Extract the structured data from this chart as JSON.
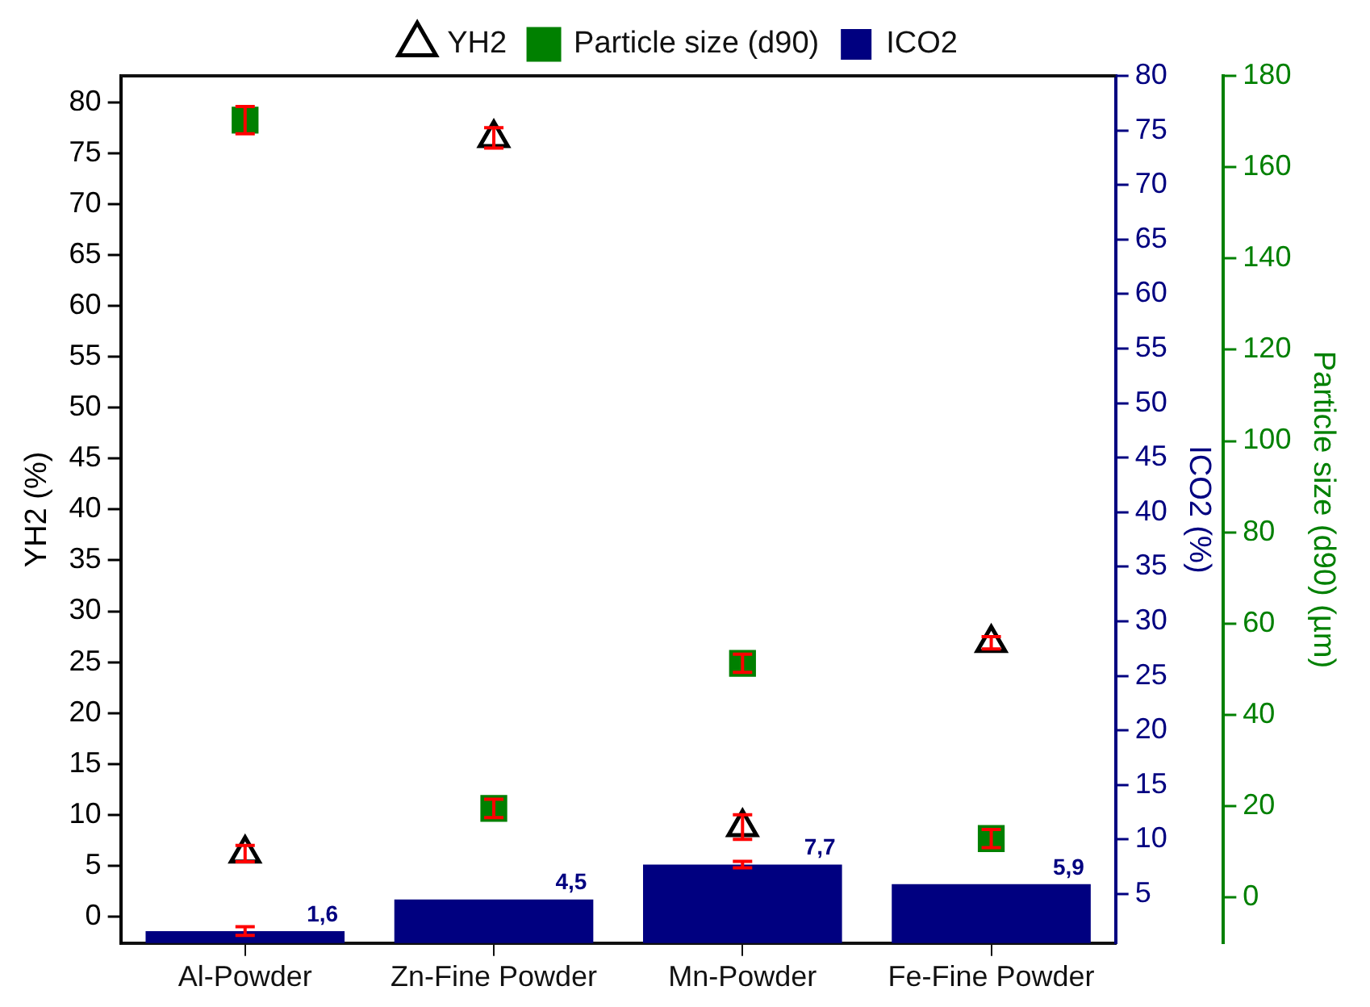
{
  "chart_data": {
    "type": "bar",
    "categories": [
      "Al-Powder",
      "Zn-Fine Powder",
      "Mn-Powder",
      "Fe-Fine Powder"
    ],
    "series": [
      {
        "name": "YH2",
        "type": "scatter",
        "marker": "triangle",
        "color": "#000000",
        "axis": "y",
        "values": [
          6.2,
          76.5,
          8.8,
          26.9
        ],
        "errors": [
          0.8,
          1,
          1.2,
          0.6
        ]
      },
      {
        "name": "Particle size (d90)",
        "type": "scatter",
        "marker": "square",
        "color": "#008000",
        "axis": "y3",
        "values": [
          170.3,
          19.5,
          51.3,
          12.9
        ],
        "errors": [
          3,
          2,
          2,
          2
        ]
      },
      {
        "name": "ICO2",
        "color": "#000080",
        "axis": "y2",
        "values": [
          1.6,
          4.5,
          7.7,
          5.9
        ],
        "value_labels": [
          "1,6",
          "4,5",
          "7,7",
          "5,9"
        ],
        "errors": [
          0.4,
          null,
          0.3,
          null
        ]
      }
    ],
    "ylabel": "YH2 (%)",
    "y2label": "ICO2 (%)",
    "y3label": "Particle size (d90) (µm)",
    "ylim": [
      -2.6,
      82.6
    ],
    "yticks": [
      0,
      5,
      10,
      15,
      20,
      25,
      30,
      35,
      40,
      45,
      50,
      55,
      60,
      65,
      70,
      75,
      80
    ],
    "y2lim": [
      0.5,
      80
    ],
    "y2ticks": [
      5,
      10,
      15,
      20,
      25,
      30,
      35,
      40,
      45,
      50,
      55,
      60,
      65,
      70,
      75,
      80
    ],
    "y3lim": [
      -10,
      180
    ],
    "y3ticks": [
      0,
      20,
      40,
      60,
      80,
      100,
      120,
      140,
      160,
      180
    ],
    "legend": "top",
    "grid": false
  }
}
